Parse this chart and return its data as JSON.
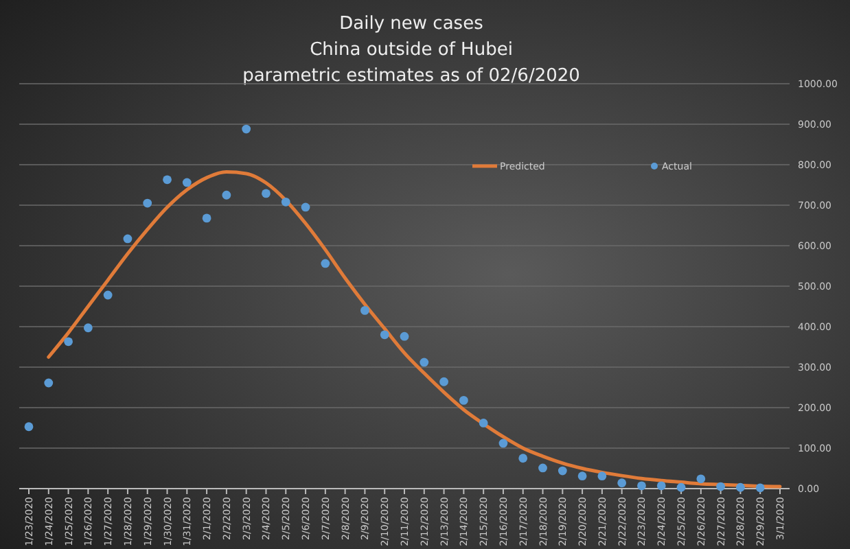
{
  "chart_data": {
    "type": "line",
    "title": "Daily new cases\nChina outside of Hubei\nparametric estimates as of 02/6/2020",
    "categories": [
      "1/23/2020",
      "1/24/2020",
      "1/25/2020",
      "1/26/2020",
      "1/27/2020",
      "1/28/2020",
      "1/29/2020",
      "1/30/2020",
      "1/31/2020",
      "2/1/2020",
      "2/2/2020",
      "2/3/2020",
      "2/4/2020",
      "2/5/2020",
      "2/6/2020",
      "2/7/2020",
      "2/8/2020",
      "2/9/2020",
      "2/10/2020",
      "2/11/2020",
      "2/12/2020",
      "2/13/2020",
      "2/14/2020",
      "2/15/2020",
      "2/16/2020",
      "2/17/2020",
      "2/18/2020",
      "2/19/2020",
      "2/20/2020",
      "2/21/2020",
      "2/22/2020",
      "2/23/2020",
      "2/24/2020",
      "2/25/2020",
      "2/26/2020",
      "2/27/2020",
      "2/28/2020",
      "2/29/2020",
      "3/1/2020"
    ],
    "series": [
      {
        "name": "Predicted",
        "color": "#e07b39",
        "marker": "none",
        "values": [
          null,
          325,
          385,
          450,
          515,
          580,
          640,
          695,
          738,
          768,
          782,
          778,
          755,
          712,
          655,
          590,
          520,
          455,
          395,
          335,
          285,
          238,
          195,
          160,
          128,
          100,
          80,
          63,
          50,
          40,
          32,
          25,
          20,
          16,
          12,
          10,
          8,
          6,
          5
        ]
      },
      {
        "name": "Actual",
        "type": "scatter",
        "color": "#5b9bd5",
        "marker": "circle",
        "values": [
          153,
          261,
          363,
          397,
          478,
          617,
          705,
          763,
          756,
          668,
          725,
          888,
          729,
          708,
          695,
          556,
          null,
          440,
          380,
          376,
          312,
          264,
          218,
          162,
          112,
          75,
          51,
          44,
          31,
          31,
          14,
          7,
          7,
          3,
          24,
          5,
          3,
          2,
          null
        ]
      }
    ],
    "ylim": [
      0,
      1000
    ],
    "yticks": [
      {
        "value": 0,
        "label": "0.00"
      },
      {
        "value": 100,
        "label": "100.00"
      },
      {
        "value": 200,
        "label": "200.00"
      },
      {
        "value": 300,
        "label": "300.00"
      },
      {
        "value": 400,
        "label": "400.00"
      },
      {
        "value": 500,
        "label": "500.00"
      },
      {
        "value": 600,
        "label": "600.00"
      },
      {
        "value": 700,
        "label": "700.00"
      },
      {
        "value": 800,
        "label": "800.00"
      },
      {
        "value": 900,
        "label": "900.00"
      },
      {
        "value": 1000,
        "label": "1000.00"
      }
    ],
    "grid": "y",
    "legend": "top"
  }
}
